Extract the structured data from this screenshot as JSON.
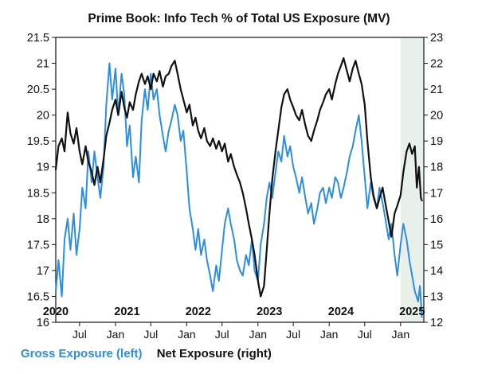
{
  "chart_data": {
    "type": "line",
    "title": "Prime Book: Info Tech % of Total US Exposure (MV)",
    "xlabel": "",
    "x_tick_labels": [
      "Jul",
      "Jan",
      "Jul",
      "Jan",
      "Jul",
      "Jan",
      "Jul",
      "Jan",
      "Jul",
      "Jan"
    ],
    "x_tick_dates": [
      "2020-07-01",
      "2021-01-01",
      "2021-07-01",
      "2022-01-01",
      "2022-07-01",
      "2023-01-01",
      "2023-07-01",
      "2024-01-01",
      "2024-07-01",
      "2025-01-01"
    ],
    "year_labels": [
      "2020",
      "2021",
      "2022",
      "2023",
      "2024",
      "2025"
    ],
    "year_label_dates": [
      "2020-03-01",
      "2021-03-01",
      "2022-03-01",
      "2023-03-01",
      "2024-03-01",
      "2025-03-01"
    ],
    "xlim": [
      "2020-03-01",
      "2025-04-30"
    ],
    "shaded_region": [
      "2025-01-01",
      "2025-04-30"
    ],
    "y_left": {
      "label": "Gross Exposure (left)",
      "ylim": [
        16,
        21.5
      ],
      "ticks": [
        "16",
        "16.5",
        "17",
        "17.5",
        "18",
        "18.5",
        "19",
        "19.5",
        "20",
        "20.5",
        "21",
        "21.5"
      ]
    },
    "y_right": {
      "label": "Net Exposure (right)",
      "ylim": [
        12,
        23
      ],
      "ticks": [
        "12",
        "13",
        "14",
        "15",
        "16",
        "17",
        "18",
        "19",
        "20",
        "21",
        "22",
        "23"
      ]
    },
    "grid": false,
    "legend_position": "bottom-left",
    "series": [
      {
        "name": "Gross Exposure (left)",
        "axis": "left",
        "color": "#2b8ee5",
        "points": [
          [
            "2020-03-01",
            16.6
          ],
          [
            "2020-03-15",
            17.2
          ],
          [
            "2020-04-01",
            16.5
          ],
          [
            "2020-04-15",
            17.6
          ],
          [
            "2020-05-01",
            18.0
          ],
          [
            "2020-05-15",
            17.4
          ],
          [
            "2020-06-01",
            18.1
          ],
          [
            "2020-06-15",
            17.3
          ],
          [
            "2020-07-01",
            17.8
          ],
          [
            "2020-07-15",
            18.6
          ],
          [
            "2020-08-01",
            18.2
          ],
          [
            "2020-08-15",
            19.3
          ],
          [
            "2020-09-01",
            18.7
          ],
          [
            "2020-09-15",
            19.3
          ],
          [
            "2020-10-01",
            18.8
          ],
          [
            "2020-10-15",
            18.4
          ],
          [
            "2020-11-01",
            19.0
          ],
          [
            "2020-11-15",
            20.2
          ],
          [
            "2020-12-01",
            21.0
          ],
          [
            "2020-12-15",
            20.3
          ],
          [
            "2021-01-01",
            20.9
          ],
          [
            "2021-01-15",
            20.0
          ],
          [
            "2021-02-01",
            20.8
          ],
          [
            "2021-02-15",
            20.4
          ],
          [
            "2021-03-01",
            19.4
          ],
          [
            "2021-03-15",
            19.8
          ],
          [
            "2021-04-01",
            18.8
          ],
          [
            "2021-04-15",
            19.2
          ],
          [
            "2021-05-01",
            18.7
          ],
          [
            "2021-05-15",
            19.9
          ],
          [
            "2021-06-01",
            20.5
          ],
          [
            "2021-06-15",
            20.1
          ],
          [
            "2021-07-01",
            20.8
          ],
          [
            "2021-07-15",
            20.3
          ],
          [
            "2021-08-01",
            20.5
          ],
          [
            "2021-08-15",
            20.0
          ],
          [
            "2021-09-01",
            19.6
          ],
          [
            "2021-09-15",
            19.3
          ],
          [
            "2021-10-01",
            19.7
          ],
          [
            "2021-10-15",
            19.9
          ],
          [
            "2021-11-01",
            20.2
          ],
          [
            "2021-11-15",
            20.0
          ],
          [
            "2021-12-01",
            19.5
          ],
          [
            "2021-12-15",
            19.7
          ],
          [
            "2022-01-01",
            18.9
          ],
          [
            "2022-01-15",
            18.2
          ],
          [
            "2022-02-01",
            17.8
          ],
          [
            "2022-02-15",
            17.4
          ],
          [
            "2022-03-01",
            17.8
          ],
          [
            "2022-03-15",
            17.3
          ],
          [
            "2022-04-01",
            17.6
          ],
          [
            "2022-04-15",
            17.2
          ],
          [
            "2022-05-01",
            16.9
          ],
          [
            "2022-05-15",
            16.6
          ],
          [
            "2022-06-01",
            17.1
          ],
          [
            "2022-06-15",
            16.8
          ],
          [
            "2022-07-01",
            17.4
          ],
          [
            "2022-07-15",
            17.9
          ],
          [
            "2022-08-01",
            18.2
          ],
          [
            "2022-08-15",
            17.9
          ],
          [
            "2022-09-01",
            17.6
          ],
          [
            "2022-09-15",
            17.2
          ],
          [
            "2022-10-01",
            17.0
          ],
          [
            "2022-10-15",
            16.9
          ],
          [
            "2022-11-01",
            17.3
          ],
          [
            "2022-11-15",
            17.1
          ],
          [
            "2022-12-01",
            17.6
          ],
          [
            "2022-12-15",
            17.0
          ],
          [
            "2023-01-01",
            16.8
          ],
          [
            "2023-01-15",
            17.5
          ],
          [
            "2023-02-01",
            17.9
          ],
          [
            "2023-02-15",
            18.4
          ],
          [
            "2023-03-01",
            18.7
          ],
          [
            "2023-03-15",
            18.4
          ],
          [
            "2023-04-01",
            18.9
          ],
          [
            "2023-04-15",
            19.3
          ],
          [
            "2023-05-01",
            19.1
          ],
          [
            "2023-05-15",
            19.6
          ],
          [
            "2023-06-01",
            19.2
          ],
          [
            "2023-06-15",
            19.4
          ],
          [
            "2023-07-01",
            19.0
          ],
          [
            "2023-07-15",
            18.8
          ],
          [
            "2023-08-01",
            18.5
          ],
          [
            "2023-08-15",
            18.8
          ],
          [
            "2023-09-01",
            18.4
          ],
          [
            "2023-09-15",
            18.1
          ],
          [
            "2023-10-01",
            18.3
          ],
          [
            "2023-10-15",
            17.9
          ],
          [
            "2023-11-01",
            18.2
          ],
          [
            "2023-11-15",
            18.5
          ],
          [
            "2023-12-01",
            18.6
          ],
          [
            "2023-12-15",
            18.3
          ],
          [
            "2024-01-01",
            18.6
          ],
          [
            "2024-01-15",
            18.4
          ],
          [
            "2024-02-01",
            18.8
          ],
          [
            "2024-02-15",
            18.7
          ],
          [
            "2024-03-01",
            18.4
          ],
          [
            "2024-03-15",
            18.6
          ],
          [
            "2024-04-01",
            18.9
          ],
          [
            "2024-04-15",
            19.2
          ],
          [
            "2024-05-01",
            19.4
          ],
          [
            "2024-05-15",
            19.7
          ],
          [
            "2024-06-01",
            20.0
          ],
          [
            "2024-06-15",
            19.5
          ],
          [
            "2024-07-01",
            18.8
          ],
          [
            "2024-07-15",
            18.2
          ],
          [
            "2024-08-01",
            18.7
          ],
          [
            "2024-08-15",
            18.4
          ],
          [
            "2024-09-01",
            18.2
          ],
          [
            "2024-09-15",
            18.6
          ],
          [
            "2024-10-01",
            18.3
          ],
          [
            "2024-10-15",
            18.0
          ],
          [
            "2024-11-01",
            17.6
          ],
          [
            "2024-11-15",
            17.9
          ],
          [
            "2024-12-01",
            17.3
          ],
          [
            "2024-12-15",
            16.9
          ],
          [
            "2025-01-01",
            17.5
          ],
          [
            "2025-01-15",
            17.9
          ],
          [
            "2025-02-01",
            17.6
          ],
          [
            "2025-02-15",
            17.2
          ],
          [
            "2025-03-01",
            16.9
          ],
          [
            "2025-03-15",
            16.6
          ],
          [
            "2025-04-01",
            16.4
          ],
          [
            "2025-04-10",
            16.7
          ],
          [
            "2025-04-20",
            16.1
          ]
        ]
      },
      {
        "name": "Net Exposure (right)",
        "axis": "right",
        "color": "#111111",
        "points": [
          [
            "2020-03-01",
            17.9
          ],
          [
            "2020-03-15",
            18.8
          ],
          [
            "2020-04-01",
            19.1
          ],
          [
            "2020-04-15",
            18.6
          ],
          [
            "2020-05-01",
            20.1
          ],
          [
            "2020-05-15",
            19.3
          ],
          [
            "2020-06-01",
            18.9
          ],
          [
            "2020-06-15",
            19.5
          ],
          [
            "2020-07-01",
            18.6
          ],
          [
            "2020-07-15",
            18.1
          ],
          [
            "2020-08-01",
            18.8
          ],
          [
            "2020-08-15",
            18.2
          ],
          [
            "2020-09-01",
            17.8
          ],
          [
            "2020-09-15",
            17.3
          ],
          [
            "2020-10-01",
            18.0
          ],
          [
            "2020-10-15",
            17.4
          ],
          [
            "2020-11-01",
            18.3
          ],
          [
            "2020-11-15",
            19.2
          ],
          [
            "2020-12-01",
            19.7
          ],
          [
            "2020-12-15",
            20.2
          ],
          [
            "2021-01-01",
            20.6
          ],
          [
            "2021-01-15",
            20.0
          ],
          [
            "2021-02-01",
            20.9
          ],
          [
            "2021-02-15",
            20.3
          ],
          [
            "2021-03-01",
            19.9
          ],
          [
            "2021-03-15",
            20.5
          ],
          [
            "2021-04-01",
            20.2
          ],
          [
            "2021-04-15",
            20.8
          ],
          [
            "2021-05-01",
            21.3
          ],
          [
            "2021-05-15",
            21.6
          ],
          [
            "2021-06-01",
            21.2
          ],
          [
            "2021-06-15",
            21.5
          ],
          [
            "2021-07-01",
            21.0
          ],
          [
            "2021-07-15",
            21.6
          ],
          [
            "2021-08-01",
            21.3
          ],
          [
            "2021-08-15",
            21.7
          ],
          [
            "2021-09-01",
            21.1
          ],
          [
            "2021-09-15",
            21.5
          ],
          [
            "2021-10-01",
            21.6
          ],
          [
            "2021-10-15",
            21.9
          ],
          [
            "2021-11-01",
            22.1
          ],
          [
            "2021-11-15",
            21.6
          ],
          [
            "2021-12-01",
            21.0
          ],
          [
            "2021-12-15",
            20.6
          ],
          [
            "2022-01-01",
            20.1
          ],
          [
            "2022-01-15",
            20.4
          ],
          [
            "2022-02-01",
            19.6
          ],
          [
            "2022-02-15",
            19.9
          ],
          [
            "2022-03-01",
            19.4
          ],
          [
            "2022-03-15",
            19.1
          ],
          [
            "2022-04-01",
            19.5
          ],
          [
            "2022-04-15",
            19.0
          ],
          [
            "2022-05-01",
            18.8
          ],
          [
            "2022-05-15",
            19.1
          ],
          [
            "2022-06-01",
            18.7
          ],
          [
            "2022-06-15",
            19.0
          ],
          [
            "2022-07-01",
            18.6
          ],
          [
            "2022-07-15",
            18.9
          ],
          [
            "2022-08-01",
            18.2
          ],
          [
            "2022-08-15",
            18.5
          ],
          [
            "2022-09-01",
            18.0
          ],
          [
            "2022-09-15",
            17.7
          ],
          [
            "2022-10-01",
            17.4
          ],
          [
            "2022-10-15",
            17.0
          ],
          [
            "2022-11-01",
            16.4
          ],
          [
            "2022-11-15",
            15.8
          ],
          [
            "2022-12-01",
            15.2
          ],
          [
            "2022-12-15",
            14.6
          ],
          [
            "2023-01-01",
            13.6
          ],
          [
            "2023-01-15",
            13.0
          ],
          [
            "2023-02-01",
            13.4
          ],
          [
            "2023-02-15",
            14.8
          ],
          [
            "2023-03-01",
            16.2
          ],
          [
            "2023-03-15",
            17.5
          ],
          [
            "2023-04-01",
            18.6
          ],
          [
            "2023-04-15",
            19.4
          ],
          [
            "2023-05-01",
            20.3
          ],
          [
            "2023-05-15",
            20.8
          ],
          [
            "2023-06-01",
            21.0
          ],
          [
            "2023-06-15",
            20.6
          ],
          [
            "2023-07-01",
            20.3
          ],
          [
            "2023-07-15",
            20.0
          ],
          [
            "2023-08-01",
            19.8
          ],
          [
            "2023-08-15",
            20.2
          ],
          [
            "2023-09-01",
            19.6
          ],
          [
            "2023-09-15",
            19.2
          ],
          [
            "2023-10-01",
            19.0
          ],
          [
            "2023-10-15",
            19.4
          ],
          [
            "2023-11-01",
            19.8
          ],
          [
            "2023-11-15",
            20.2
          ],
          [
            "2023-12-01",
            20.5
          ],
          [
            "2023-12-15",
            20.8
          ],
          [
            "2024-01-01",
            21.0
          ],
          [
            "2024-01-15",
            20.6
          ],
          [
            "2024-02-01",
            21.2
          ],
          [
            "2024-02-15",
            21.6
          ],
          [
            "2024-03-01",
            21.9
          ],
          [
            "2024-03-15",
            22.2
          ],
          [
            "2024-04-01",
            21.7
          ],
          [
            "2024-04-15",
            21.3
          ],
          [
            "2024-05-01",
            21.8
          ],
          [
            "2024-05-15",
            22.1
          ],
          [
            "2024-06-01",
            21.6
          ],
          [
            "2024-06-15",
            21.2
          ],
          [
            "2024-07-01",
            20.4
          ],
          [
            "2024-07-15",
            19.0
          ],
          [
            "2024-08-01",
            17.6
          ],
          [
            "2024-08-15",
            16.9
          ],
          [
            "2024-09-01",
            16.4
          ],
          [
            "2024-09-15",
            16.8
          ],
          [
            "2024-10-01",
            17.2
          ],
          [
            "2024-10-15",
            16.6
          ],
          [
            "2024-11-01",
            15.9
          ],
          [
            "2024-11-15",
            15.3
          ],
          [
            "2024-12-01",
            16.2
          ],
          [
            "2024-12-15",
            16.5
          ],
          [
            "2025-01-01",
            16.9
          ],
          [
            "2025-01-15",
            17.8
          ],
          [
            "2025-02-01",
            18.6
          ],
          [
            "2025-02-15",
            18.9
          ],
          [
            "2025-03-01",
            18.5
          ],
          [
            "2025-03-15",
            18.8
          ],
          [
            "2025-03-25",
            17.2
          ],
          [
            "2025-04-05",
            18.0
          ],
          [
            "2025-04-15",
            16.8
          ],
          [
            "2025-04-20",
            16.7
          ]
        ]
      }
    ]
  }
}
